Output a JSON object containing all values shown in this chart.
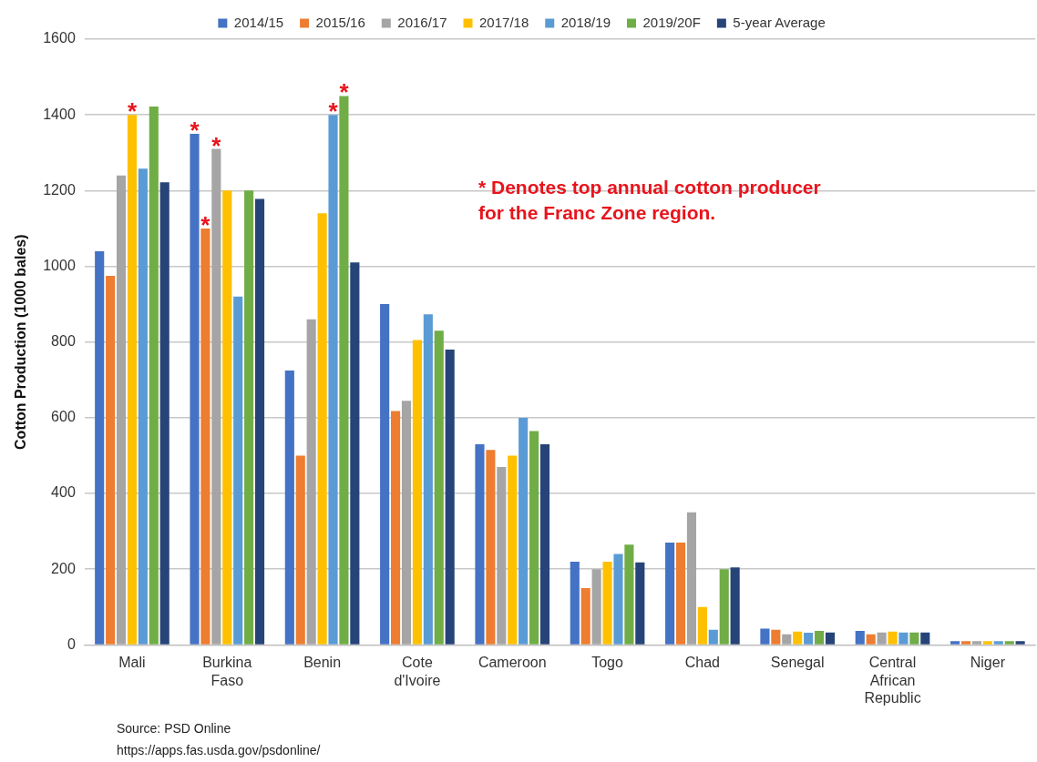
{
  "chart_data": {
    "type": "bar",
    "ylabel": "Cotton Production (1000 bales)",
    "categories": [
      "Mali",
      "Burkina Faso",
      "Benin",
      "Cote d'Ivoire",
      "Cameroon",
      "Togo",
      "Chad",
      "Senegal",
      "Central African Republic",
      "Niger"
    ],
    "series": [
      {
        "name": "2014/15",
        "color": "#4472c4",
        "values": [
          1040,
          1350,
          725,
          900,
          530,
          220,
          270,
          43,
          37,
          10
        ],
        "value_labels": [
          null,
          "*",
          null,
          null,
          null,
          null,
          null,
          null,
          null,
          null
        ]
      },
      {
        "name": "2015/16",
        "color": "#ed7d31",
        "values": [
          975,
          1100,
          500,
          618,
          515,
          150,
          270,
          40,
          28,
          10
        ],
        "value_labels": [
          null,
          "*",
          null,
          null,
          null,
          null,
          null,
          null,
          null,
          null
        ]
      },
      {
        "name": "2016/17",
        "color": "#a5a5a5",
        "values": [
          1240,
          1310,
          860,
          645,
          470,
          200,
          350,
          28,
          33,
          10
        ],
        "value_labels": [
          null,
          "*",
          null,
          null,
          null,
          null,
          null,
          null,
          null,
          null
        ]
      },
      {
        "name": "2017/18",
        "color": "#ffc000",
        "values": [
          1400,
          1200,
          1140,
          805,
          500,
          220,
          100,
          35,
          35,
          10
        ],
        "value_labels": [
          "*",
          null,
          null,
          null,
          null,
          null,
          null,
          null,
          null,
          null
        ]
      },
      {
        "name": "2018/19",
        "color": "#5b9bd5",
        "values": [
          1258,
          920,
          1400,
          873,
          600,
          240,
          40,
          32,
          33,
          10
        ],
        "value_labels": [
          null,
          null,
          "*",
          null,
          null,
          null,
          null,
          null,
          null,
          null
        ]
      },
      {
        "name": "2019/20F",
        "color": "#70ad47",
        "values": [
          1422,
          1200,
          1450,
          830,
          565,
          265,
          200,
          37,
          33,
          10
        ],
        "value_labels": [
          null,
          null,
          "*",
          null,
          null,
          null,
          null,
          null,
          null,
          null
        ]
      },
      {
        "name": "5-year Average",
        "color": "#264478",
        "values": [
          1222,
          1178,
          1010,
          780,
          530,
          218,
          205,
          33,
          33,
          10
        ]
      }
    ],
    "ylim": [
      0,
      1600
    ],
    "yticks": [
      0,
      200,
      400,
      600,
      800,
      1000,
      1200,
      1400,
      1600
    ],
    "grid": "y",
    "legend": "top",
    "annotations": [
      "* Denotes top annual cotton producer\nfor the Franc Zone region.",
      "Source: PSD Online",
      "https://apps.fas.usda.gov/psdonline/"
    ]
  }
}
